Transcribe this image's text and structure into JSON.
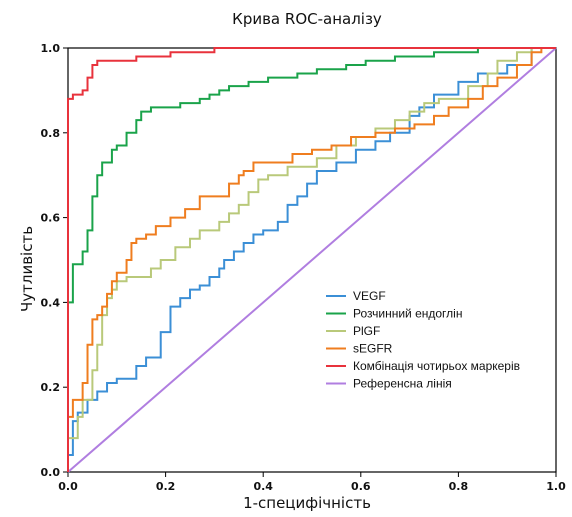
{
  "chart_data": {
    "type": "line",
    "title": "Крива ROC-аналізу",
    "xlabel": "1-специфічність",
    "ylabel": "Чутливість",
    "xlim": [
      0,
      1
    ],
    "ylim": [
      0,
      1
    ],
    "grid": false,
    "legend_position": "bottom-right",
    "x_ticks": [
      "0.0",
      "0.2",
      "0.4",
      "0.6",
      "0.8",
      "1.0"
    ],
    "y_ticks": [
      "0.0",
      "0.2",
      "0.4",
      "0.6",
      "0.8",
      "1.0"
    ],
    "series": [
      {
        "name": "VEGF",
        "color": "#3b8fd6",
        "points": [
          [
            0,
            0
          ],
          [
            0,
            0.04
          ],
          [
            0.01,
            0.04
          ],
          [
            0.01,
            0.12
          ],
          [
            0.02,
            0.12
          ],
          [
            0.02,
            0.14
          ],
          [
            0.04,
            0.14
          ],
          [
            0.04,
            0.17
          ],
          [
            0.06,
            0.17
          ],
          [
            0.06,
            0.19
          ],
          [
            0.08,
            0.19
          ],
          [
            0.08,
            0.21
          ],
          [
            0.1,
            0.21
          ],
          [
            0.1,
            0.22
          ],
          [
            0.14,
            0.22
          ],
          [
            0.14,
            0.25
          ],
          [
            0.16,
            0.25
          ],
          [
            0.16,
            0.27
          ],
          [
            0.19,
            0.27
          ],
          [
            0.19,
            0.33
          ],
          [
            0.21,
            0.33
          ],
          [
            0.21,
            0.39
          ],
          [
            0.23,
            0.39
          ],
          [
            0.23,
            0.41
          ],
          [
            0.25,
            0.41
          ],
          [
            0.25,
            0.43
          ],
          [
            0.27,
            0.43
          ],
          [
            0.27,
            0.44
          ],
          [
            0.29,
            0.44
          ],
          [
            0.29,
            0.46
          ],
          [
            0.31,
            0.46
          ],
          [
            0.31,
            0.48
          ],
          [
            0.32,
            0.48
          ],
          [
            0.32,
            0.5
          ],
          [
            0.34,
            0.5
          ],
          [
            0.34,
            0.52
          ],
          [
            0.36,
            0.52
          ],
          [
            0.36,
            0.54
          ],
          [
            0.38,
            0.54
          ],
          [
            0.38,
            0.56
          ],
          [
            0.4,
            0.56
          ],
          [
            0.4,
            0.57
          ],
          [
            0.43,
            0.57
          ],
          [
            0.43,
            0.59
          ],
          [
            0.45,
            0.59
          ],
          [
            0.45,
            0.63
          ],
          [
            0.47,
            0.63
          ],
          [
            0.47,
            0.65
          ],
          [
            0.49,
            0.65
          ],
          [
            0.49,
            0.68
          ],
          [
            0.51,
            0.68
          ],
          [
            0.51,
            0.71
          ],
          [
            0.55,
            0.71
          ],
          [
            0.55,
            0.73
          ],
          [
            0.59,
            0.73
          ],
          [
            0.59,
            0.76
          ],
          [
            0.63,
            0.76
          ],
          [
            0.63,
            0.78
          ],
          [
            0.66,
            0.78
          ],
          [
            0.66,
            0.8
          ],
          [
            0.7,
            0.8
          ],
          [
            0.7,
            0.84
          ],
          [
            0.72,
            0.84
          ],
          [
            0.72,
            0.86
          ],
          [
            0.75,
            0.86
          ],
          [
            0.75,
            0.89
          ],
          [
            0.8,
            0.89
          ],
          [
            0.8,
            0.92
          ],
          [
            0.84,
            0.92
          ],
          [
            0.84,
            0.94
          ],
          [
            0.9,
            0.94
          ],
          [
            0.9,
            0.96
          ],
          [
            0.95,
            0.96
          ],
          [
            0.95,
            1
          ],
          [
            1,
            1
          ]
        ]
      },
      {
        "name": "Розчинний ендоглін",
        "color": "#1aa34a",
        "points": [
          [
            0,
            0
          ],
          [
            0,
            0.4
          ],
          [
            0.01,
            0.4
          ],
          [
            0.01,
            0.49
          ],
          [
            0.03,
            0.49
          ],
          [
            0.03,
            0.52
          ],
          [
            0.04,
            0.52
          ],
          [
            0.04,
            0.57
          ],
          [
            0.05,
            0.57
          ],
          [
            0.05,
            0.65
          ],
          [
            0.06,
            0.65
          ],
          [
            0.06,
            0.7
          ],
          [
            0.07,
            0.7
          ],
          [
            0.07,
            0.73
          ],
          [
            0.09,
            0.73
          ],
          [
            0.09,
            0.76
          ],
          [
            0.1,
            0.76
          ],
          [
            0.1,
            0.77
          ],
          [
            0.12,
            0.77
          ],
          [
            0.12,
            0.8
          ],
          [
            0.14,
            0.8
          ],
          [
            0.14,
            0.83
          ],
          [
            0.15,
            0.83
          ],
          [
            0.15,
            0.85
          ],
          [
            0.17,
            0.85
          ],
          [
            0.17,
            0.86
          ],
          [
            0.23,
            0.86
          ],
          [
            0.23,
            0.87
          ],
          [
            0.27,
            0.87
          ],
          [
            0.27,
            0.88
          ],
          [
            0.29,
            0.88
          ],
          [
            0.29,
            0.89
          ],
          [
            0.31,
            0.89
          ],
          [
            0.31,
            0.9
          ],
          [
            0.33,
            0.9
          ],
          [
            0.33,
            0.91
          ],
          [
            0.37,
            0.91
          ],
          [
            0.37,
            0.92
          ],
          [
            0.41,
            0.92
          ],
          [
            0.41,
            0.93
          ],
          [
            0.47,
            0.93
          ],
          [
            0.47,
            0.94
          ],
          [
            0.51,
            0.94
          ],
          [
            0.51,
            0.95
          ],
          [
            0.57,
            0.95
          ],
          [
            0.57,
            0.96
          ],
          [
            0.61,
            0.96
          ],
          [
            0.61,
            0.97
          ],
          [
            0.67,
            0.97
          ],
          [
            0.67,
            0.98
          ],
          [
            0.75,
            0.98
          ],
          [
            0.75,
            0.99
          ],
          [
            0.84,
            0.99
          ],
          [
            0.84,
            1
          ],
          [
            1,
            1
          ]
        ]
      },
      {
        "name": "PlGF",
        "color": "#b9c97a",
        "points": [
          [
            0,
            0
          ],
          [
            0,
            0.08
          ],
          [
            0.02,
            0.08
          ],
          [
            0.02,
            0.13
          ],
          [
            0.03,
            0.13
          ],
          [
            0.03,
            0.17
          ],
          [
            0.05,
            0.17
          ],
          [
            0.05,
            0.24
          ],
          [
            0.06,
            0.24
          ],
          [
            0.06,
            0.3
          ],
          [
            0.07,
            0.3
          ],
          [
            0.07,
            0.37
          ],
          [
            0.08,
            0.37
          ],
          [
            0.08,
            0.41
          ],
          [
            0.09,
            0.41
          ],
          [
            0.09,
            0.43
          ],
          [
            0.1,
            0.43
          ],
          [
            0.1,
            0.45
          ],
          [
            0.12,
            0.45
          ],
          [
            0.12,
            0.46
          ],
          [
            0.17,
            0.46
          ],
          [
            0.17,
            0.48
          ],
          [
            0.19,
            0.48
          ],
          [
            0.19,
            0.5
          ],
          [
            0.22,
            0.5
          ],
          [
            0.22,
            0.53
          ],
          [
            0.25,
            0.53
          ],
          [
            0.25,
            0.55
          ],
          [
            0.27,
            0.55
          ],
          [
            0.27,
            0.57
          ],
          [
            0.31,
            0.57
          ],
          [
            0.31,
            0.59
          ],
          [
            0.33,
            0.59
          ],
          [
            0.33,
            0.61
          ],
          [
            0.35,
            0.61
          ],
          [
            0.35,
            0.63
          ],
          [
            0.37,
            0.63
          ],
          [
            0.37,
            0.66
          ],
          [
            0.39,
            0.66
          ],
          [
            0.39,
            0.69
          ],
          [
            0.41,
            0.69
          ],
          [
            0.41,
            0.7
          ],
          [
            0.45,
            0.7
          ],
          [
            0.45,
            0.72
          ],
          [
            0.51,
            0.72
          ],
          [
            0.51,
            0.74
          ],
          [
            0.55,
            0.74
          ],
          [
            0.55,
            0.77
          ],
          [
            0.59,
            0.77
          ],
          [
            0.59,
            0.79
          ],
          [
            0.63,
            0.79
          ],
          [
            0.63,
            0.81
          ],
          [
            0.67,
            0.81
          ],
          [
            0.67,
            0.83
          ],
          [
            0.7,
            0.83
          ],
          [
            0.7,
            0.85
          ],
          [
            0.73,
            0.85
          ],
          [
            0.73,
            0.87
          ],
          [
            0.76,
            0.87
          ],
          [
            0.76,
            0.88
          ],
          [
            0.82,
            0.88
          ],
          [
            0.82,
            0.91
          ],
          [
            0.86,
            0.91
          ],
          [
            0.86,
            0.94
          ],
          [
            0.88,
            0.94
          ],
          [
            0.88,
            0.97
          ],
          [
            0.92,
            0.97
          ],
          [
            0.92,
            0.99
          ],
          [
            0.95,
            0.99
          ],
          [
            0.95,
            1
          ],
          [
            1,
            1
          ]
        ]
      },
      {
        "name": "sEGFR",
        "color": "#ef7d1f",
        "points": [
          [
            0,
            0
          ],
          [
            0,
            0.13
          ],
          [
            0.01,
            0.13
          ],
          [
            0.01,
            0.17
          ],
          [
            0.03,
            0.17
          ],
          [
            0.03,
            0.21
          ],
          [
            0.04,
            0.21
          ],
          [
            0.04,
            0.3
          ],
          [
            0.05,
            0.3
          ],
          [
            0.05,
            0.36
          ],
          [
            0.06,
            0.36
          ],
          [
            0.06,
            0.37
          ],
          [
            0.07,
            0.37
          ],
          [
            0.07,
            0.39
          ],
          [
            0.08,
            0.39
          ],
          [
            0.08,
            0.42
          ],
          [
            0.09,
            0.42
          ],
          [
            0.09,
            0.45
          ],
          [
            0.1,
            0.45
          ],
          [
            0.1,
            0.47
          ],
          [
            0.12,
            0.47
          ],
          [
            0.12,
            0.5
          ],
          [
            0.13,
            0.5
          ],
          [
            0.13,
            0.54
          ],
          [
            0.14,
            0.54
          ],
          [
            0.14,
            0.55
          ],
          [
            0.16,
            0.55
          ],
          [
            0.16,
            0.56
          ],
          [
            0.18,
            0.56
          ],
          [
            0.18,
            0.58
          ],
          [
            0.21,
            0.58
          ],
          [
            0.21,
            0.6
          ],
          [
            0.24,
            0.6
          ],
          [
            0.24,
            0.62
          ],
          [
            0.27,
            0.62
          ],
          [
            0.27,
            0.65
          ],
          [
            0.33,
            0.65
          ],
          [
            0.33,
            0.68
          ],
          [
            0.35,
            0.68
          ],
          [
            0.35,
            0.7
          ],
          [
            0.36,
            0.7
          ],
          [
            0.36,
            0.71
          ],
          [
            0.38,
            0.71
          ],
          [
            0.38,
            0.73
          ],
          [
            0.46,
            0.73
          ],
          [
            0.46,
            0.75
          ],
          [
            0.5,
            0.75
          ],
          [
            0.5,
            0.76
          ],
          [
            0.54,
            0.76
          ],
          [
            0.54,
            0.77
          ],
          [
            0.58,
            0.77
          ],
          [
            0.58,
            0.79
          ],
          [
            0.63,
            0.79
          ],
          [
            0.63,
            0.8
          ],
          [
            0.67,
            0.8
          ],
          [
            0.67,
            0.81
          ],
          [
            0.71,
            0.81
          ],
          [
            0.71,
            0.82
          ],
          [
            0.75,
            0.82
          ],
          [
            0.75,
            0.84
          ],
          [
            0.78,
            0.84
          ],
          [
            0.78,
            0.86
          ],
          [
            0.82,
            0.86
          ],
          [
            0.82,
            0.88
          ],
          [
            0.85,
            0.88
          ],
          [
            0.85,
            0.91
          ],
          [
            0.88,
            0.91
          ],
          [
            0.88,
            0.93
          ],
          [
            0.92,
            0.93
          ],
          [
            0.92,
            0.96
          ],
          [
            0.95,
            0.96
          ],
          [
            0.95,
            0.99
          ],
          [
            0.97,
            0.99
          ],
          [
            0.97,
            1
          ],
          [
            1,
            1
          ]
        ]
      },
      {
        "name": "Комбінація чотирьох маркерів",
        "color": "#e8323c",
        "points": [
          [
            0,
            0
          ],
          [
            0,
            0.88
          ],
          [
            0.01,
            0.88
          ],
          [
            0.01,
            0.89
          ],
          [
            0.03,
            0.89
          ],
          [
            0.03,
            0.9
          ],
          [
            0.04,
            0.9
          ],
          [
            0.04,
            0.93
          ],
          [
            0.05,
            0.93
          ],
          [
            0.05,
            0.96
          ],
          [
            0.06,
            0.96
          ],
          [
            0.06,
            0.97
          ],
          [
            0.14,
            0.97
          ],
          [
            0.14,
            0.98
          ],
          [
            0.21,
            0.98
          ],
          [
            0.21,
            0.99
          ],
          [
            0.3,
            0.99
          ],
          [
            0.3,
            1
          ],
          [
            1,
            1
          ]
        ]
      },
      {
        "name": "Референсна лінія",
        "color": "#b07ee0",
        "points": [
          [
            0,
            0
          ],
          [
            1,
            1
          ]
        ]
      }
    ]
  }
}
